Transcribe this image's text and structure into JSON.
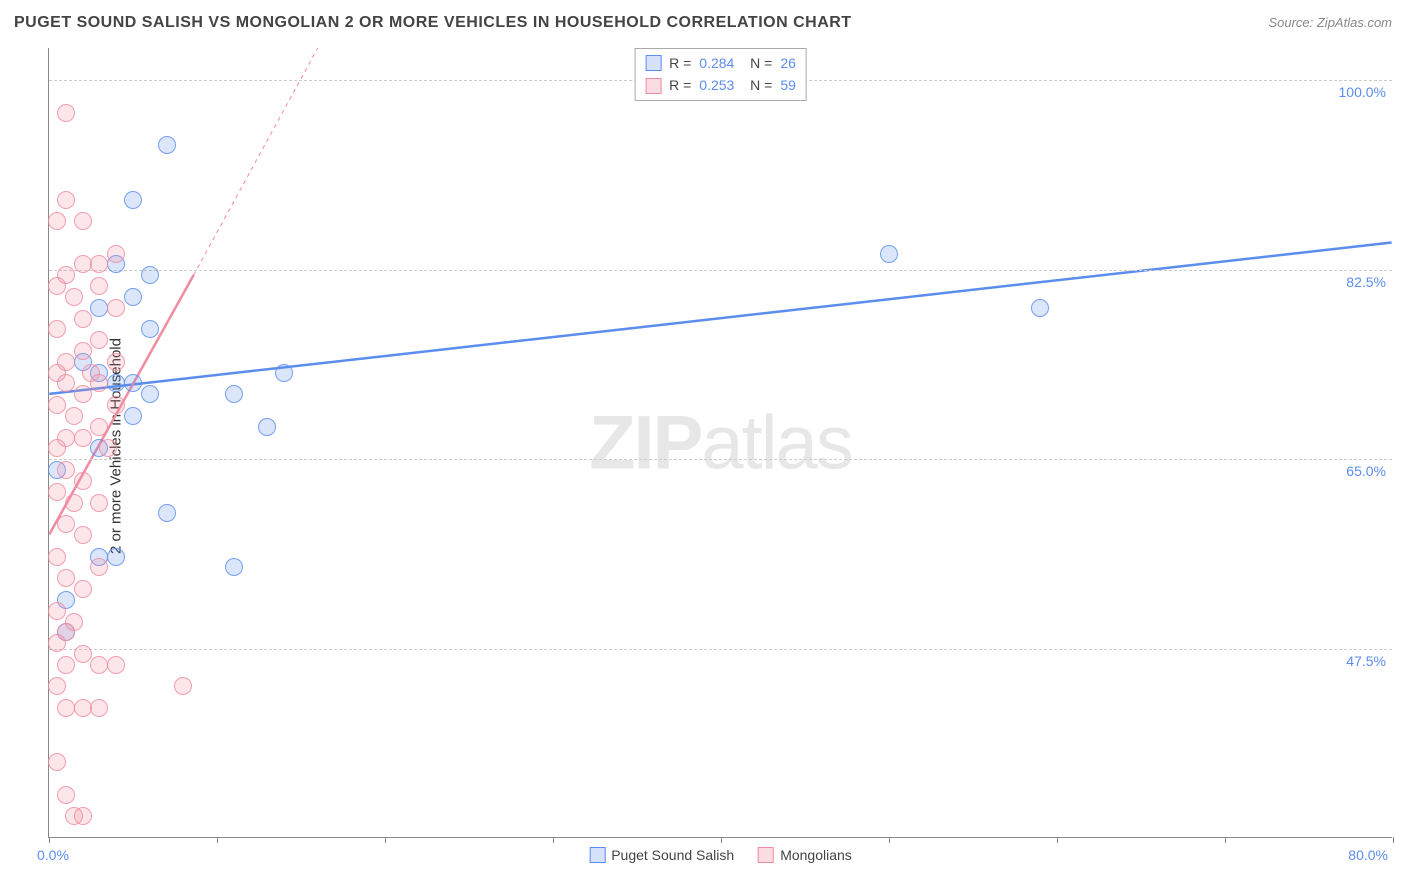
{
  "header": {
    "title": "PUGET SOUND SALISH VS MONGOLIAN 2 OR MORE VEHICLES IN HOUSEHOLD CORRELATION CHART",
    "source": "Source: ZipAtlas.com"
  },
  "chart": {
    "type": "scatter",
    "y_axis_label": "2 or more Vehicles in Household",
    "xlim": [
      0,
      80
    ],
    "ylim": [
      30,
      103
    ],
    "x_tick_positions": [
      0,
      10,
      20,
      30,
      40,
      50,
      60,
      70,
      80
    ],
    "y_gridlines": [
      47.5,
      65.0,
      82.5,
      100.0
    ],
    "y_grid_labels": [
      "47.5%",
      "65.0%",
      "82.5%",
      "100.0%"
    ],
    "x_min_label": "0.0%",
    "x_max_label": "80.0%",
    "background_color": "#ffffff",
    "grid_color": "#cccccc",
    "axis_color": "#888888",
    "label_color": "#5b8def",
    "title_fontsize": 16,
    "label_fontsize": 15,
    "tick_fontsize": 14,
    "marker_radius": 9,
    "marker_fill_opacity": 0.22,
    "marker_stroke_opacity": 0.8,
    "marker_stroke_width": 1,
    "series": [
      {
        "name": "Puget Sound Salish",
        "color": "#5b8def",
        "r": "0.284",
        "n": "26",
        "trendline": {
          "x1": 0,
          "y1": 71,
          "x2": 80,
          "y2": 85,
          "width": 2.5,
          "dash": "none"
        },
        "points": [
          [
            7,
            94
          ],
          [
            5,
            89
          ],
          [
            4,
            83
          ],
          [
            6,
            82
          ],
          [
            5,
            80
          ],
          [
            3,
            79
          ],
          [
            6,
            77
          ],
          [
            2,
            74
          ],
          [
            3,
            73
          ],
          [
            14,
            73
          ],
          [
            4,
            72
          ],
          [
            5,
            72
          ],
          [
            6,
            71
          ],
          [
            11,
            71
          ],
          [
            13,
            68
          ],
          [
            0.5,
            64
          ],
          [
            7,
            60
          ],
          [
            3,
            56
          ],
          [
            4,
            56
          ],
          [
            11,
            55
          ],
          [
            1,
            52
          ],
          [
            1,
            49
          ],
          [
            50,
            84
          ],
          [
            59,
            79
          ],
          [
            5,
            69
          ],
          [
            3,
            66
          ]
        ]
      },
      {
        "name": "Mongolians",
        "color": "#f08ca0",
        "r": "0.253",
        "n": "59",
        "trendline_solid": {
          "x1": 0,
          "y1": 58,
          "x2": 8.6,
          "y2": 82,
          "width": 2.5
        },
        "trendline_dashed": {
          "x1": 8.6,
          "y1": 82,
          "x2": 16,
          "y2": 103,
          "width": 1,
          "dash": "4,4"
        },
        "points": [
          [
            1,
            97
          ],
          [
            1,
            89
          ],
          [
            0.5,
            87
          ],
          [
            2,
            87
          ],
          [
            4,
            84
          ],
          [
            2,
            83
          ],
          [
            3,
            83
          ],
          [
            1,
            82
          ],
          [
            0.5,
            81
          ],
          [
            3,
            81
          ],
          [
            1.5,
            80
          ],
          [
            4,
            79
          ],
          [
            2,
            78
          ],
          [
            0.5,
            77
          ],
          [
            3,
            76
          ],
          [
            2,
            75
          ],
          [
            1,
            74
          ],
          [
            4,
            74
          ],
          [
            0.5,
            73
          ],
          [
            2.5,
            73
          ],
          [
            1,
            72
          ],
          [
            3,
            72
          ],
          [
            2,
            71
          ],
          [
            0.5,
            70
          ],
          [
            4,
            70
          ],
          [
            1.5,
            69
          ],
          [
            3,
            68
          ],
          [
            1,
            67
          ],
          [
            2,
            67
          ],
          [
            0.5,
            66
          ],
          [
            3.5,
            66
          ],
          [
            1,
            64
          ],
          [
            2,
            63
          ],
          [
            0.5,
            62
          ],
          [
            1.5,
            61
          ],
          [
            3,
            61
          ],
          [
            1,
            59
          ],
          [
            2,
            58
          ],
          [
            0.5,
            56
          ],
          [
            3,
            55
          ],
          [
            1,
            54
          ],
          [
            2,
            53
          ],
          [
            0.5,
            51
          ],
          [
            1.5,
            50
          ],
          [
            1,
            49
          ],
          [
            0.5,
            48
          ],
          [
            2,
            47
          ],
          [
            1,
            46
          ],
          [
            3,
            46
          ],
          [
            4,
            46
          ],
          [
            0.5,
            44
          ],
          [
            8,
            44
          ],
          [
            1,
            42
          ],
          [
            2,
            42
          ],
          [
            3,
            42
          ],
          [
            0.5,
            37
          ],
          [
            1,
            34
          ],
          [
            1.5,
            32
          ],
          [
            2,
            32
          ]
        ]
      }
    ],
    "legend_bottom": [
      {
        "label": "Puget Sound Salish",
        "swatch_fill": "rgba(91,141,239,0.25)",
        "swatch_border": "#5b8def"
      },
      {
        "label": "Mongolians",
        "swatch_fill": "rgba(240,140,160,0.3)",
        "swatch_border": "#f08ca0"
      }
    ],
    "watermark": {
      "zip": "ZIP",
      "atlas": "atlas"
    }
  }
}
